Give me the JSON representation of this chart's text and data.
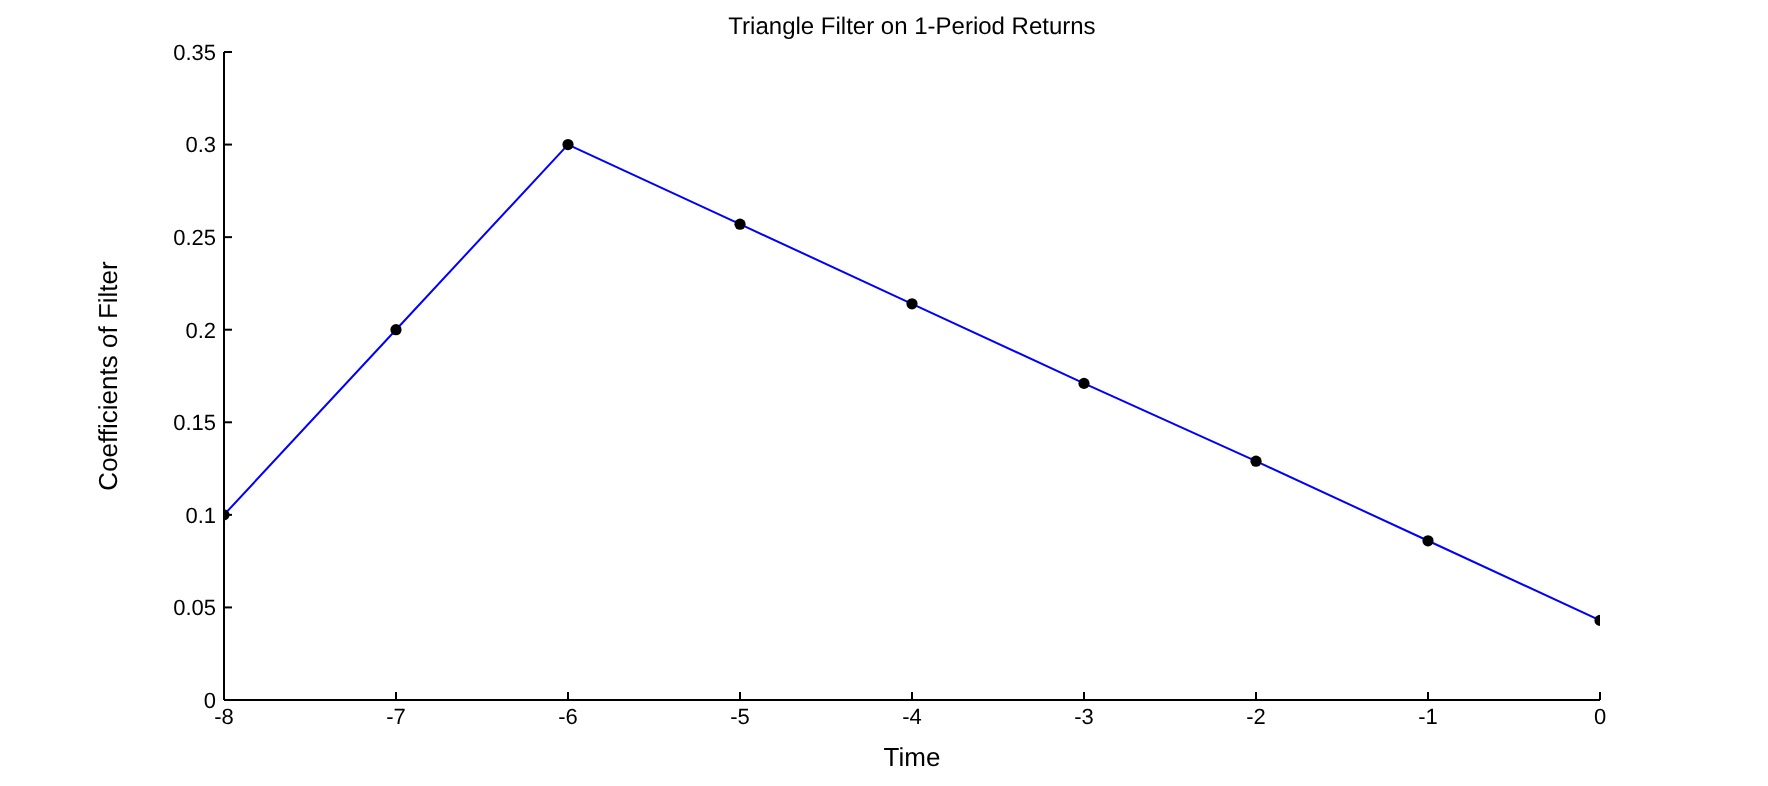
{
  "chart_data": {
    "type": "line",
    "title": "Triangle Filter on 1-Period Returns",
    "xlabel": "Time",
    "ylabel": "Coefficients of Filter",
    "x": [
      -8,
      -7,
      -6,
      -5,
      -4,
      -3,
      -2,
      -1,
      0
    ],
    "series": [
      {
        "color": "#0000ff",
        "values": [
          0.1,
          0.2,
          0.3,
          0.257,
          0.214,
          0.171,
          0.129,
          0.086,
          0.043
        ]
      }
    ],
    "xlim": [
      -8,
      0
    ],
    "xticks": [
      -8,
      -7,
      -6,
      -5,
      -4,
      -3,
      -2,
      -1,
      0
    ],
    "ylim": [
      0,
      0.35
    ],
    "yticks": [
      0,
      0.05,
      0.1,
      0.15,
      0.2,
      0.25,
      0.3,
      0.35
    ],
    "grid": false,
    "legend": false,
    "marker": "circle",
    "line_style": "solid"
  }
}
